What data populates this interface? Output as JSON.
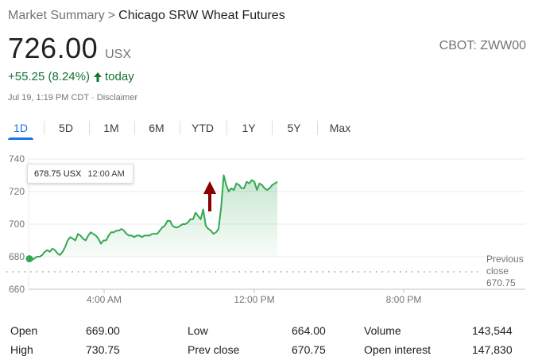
{
  "breadcrumb": {
    "root": "Market Summary",
    "separator": ">",
    "current": "Chicago SRW Wheat Futures"
  },
  "quote": {
    "price": "726.00",
    "currency": "USX",
    "ticker": "CBOT: ZWW00",
    "change": "+55.25 (8.24%)",
    "change_period": "today",
    "timestamp": "Jul 19, 1:19 PM CDT",
    "meta_separator": "·",
    "disclaimer": "Disclaimer",
    "change_color": "#137333"
  },
  "tabs": [
    {
      "label": "1D",
      "active": true
    },
    {
      "label": "5D",
      "active": false
    },
    {
      "label": "1M",
      "active": false
    },
    {
      "label": "6M",
      "active": false
    },
    {
      "label": "YTD",
      "active": false
    },
    {
      "label": "1Y",
      "active": false
    },
    {
      "label": "5Y",
      "active": false
    },
    {
      "label": "Max",
      "active": false
    }
  ],
  "tooltip": {
    "value": "678.75 USX",
    "time": "12:00 AM"
  },
  "previous_close": {
    "line1": "Previous",
    "line2": "close",
    "value": "670.75"
  },
  "chart_data": {
    "type": "line",
    "ylim": [
      660,
      740
    ],
    "y_ticks": [
      "740",
      "720",
      "700",
      "680",
      "660"
    ],
    "x_ticks": [
      "4:00 AM",
      "12:00 PM",
      "8:00 PM"
    ],
    "line_color": "#34a853",
    "previous_close": 670.75,
    "series": [
      {
        "values": [
          678.75,
          678,
          679,
          680,
          680,
          681,
          683,
          684,
          683,
          685,
          684,
          682,
          681,
          683,
          686,
          690,
          692,
          691,
          690,
          694,
          693,
          691,
          690,
          693,
          695,
          694,
          693,
          691,
          688,
          690,
          690,
          693,
          695,
          695,
          696,
          696,
          697,
          696,
          694,
          693,
          693,
          692,
          693,
          693,
          692,
          693,
          693,
          693,
          694,
          694,
          694,
          696,
          698,
          699,
          702,
          702,
          699,
          698,
          698,
          699,
          700,
          700,
          701,
          703,
          703,
          707,
          705,
          703,
          709,
          699,
          697,
          696,
          694,
          695,
          697,
          710,
          730,
          724,
          720,
          722,
          721,
          725,
          724,
          722,
          722,
          726,
          725,
          727,
          726,
          721,
          725,
          724,
          722,
          721,
          722,
          724,
          725,
          726
        ]
      }
    ]
  },
  "stats": [
    {
      "label": "Open",
      "value": "669.00"
    },
    {
      "label": "High",
      "value": "730.75"
    },
    {
      "label": "Low",
      "value": "664.00"
    },
    {
      "label": "Prev close",
      "value": "670.75"
    },
    {
      "label": "Volume",
      "value": "143,544"
    },
    {
      "label": "Open interest",
      "value": "147,830"
    }
  ]
}
